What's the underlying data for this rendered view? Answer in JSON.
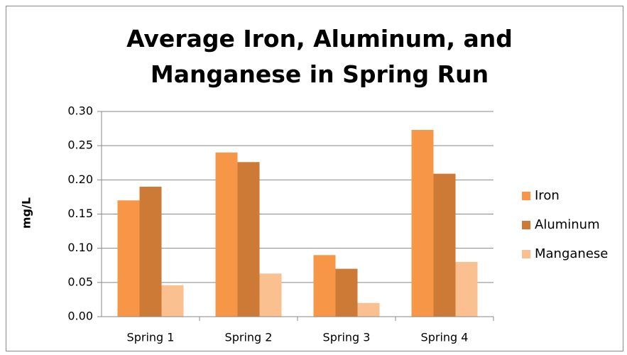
{
  "chart_data": {
    "type": "bar",
    "title": "Average Iron, Aluminum, and Manganese in Spring Run",
    "y_label": "mg/L",
    "categories": [
      "Spring 1",
      "Spring 2",
      "Spring 3",
      "Spring 4"
    ],
    "series": [
      {
        "name": "Iron",
        "color": "#f79646",
        "values": [
          0.17,
          0.24,
          0.09,
          0.273
        ]
      },
      {
        "name": "Aluminum",
        "color": "#cc7a36",
        "values": [
          0.19,
          0.226,
          0.07,
          0.209
        ]
      },
      {
        "name": "Manganese",
        "color": "#fac090",
        "values": [
          0.046,
          0.063,
          0.02,
          0.08
        ]
      }
    ],
    "ylim": [
      0,
      0.3
    ],
    "yticks": [
      {
        "value": 0,
        "label": "0.00"
      },
      {
        "value": 0.05,
        "label": "0.05"
      },
      {
        "value": 0.1,
        "label": "0.10"
      },
      {
        "value": 0.15,
        "label": "0.15"
      },
      {
        "value": 0.2,
        "label": "0.20"
      },
      {
        "value": 0.25,
        "label": "0.25"
      },
      {
        "value": 0.3,
        "label": "0.30"
      }
    ],
    "grid": true,
    "legend": "right"
  }
}
